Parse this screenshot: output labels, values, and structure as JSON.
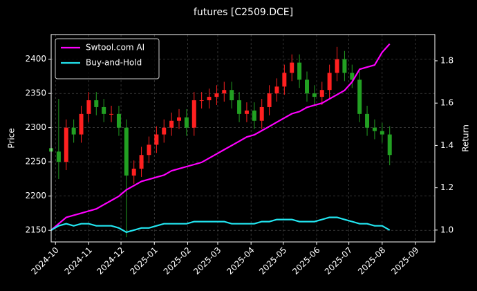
{
  "chart_data": {
    "type": "candlestick",
    "title": "futures [C2509.DCE]",
    "ylabel": "Price",
    "y2label": "Return",
    "x": [
      "2024-09-27",
      "2024-10-04",
      "2024-10-11",
      "2024-10-18",
      "2024-10-25",
      "2024-11-01",
      "2024-11-08",
      "2024-11-15",
      "2024-11-22",
      "2024-11-29",
      "2024-12-06",
      "2024-12-13",
      "2024-12-20",
      "2024-12-27",
      "2025-01-03",
      "2025-01-10",
      "2025-01-17",
      "2025-01-24",
      "2025-01-31",
      "2025-02-07",
      "2025-02-14",
      "2025-02-21",
      "2025-02-28",
      "2025-03-07",
      "2025-03-14",
      "2025-03-21",
      "2025-03-28",
      "2025-04-04",
      "2025-04-11",
      "2025-04-18",
      "2025-04-25",
      "2025-05-02",
      "2025-05-09",
      "2025-05-16",
      "2025-05-23",
      "2025-05-30",
      "2025-06-06",
      "2025-06-13",
      "2025-06-20",
      "2025-06-27",
      "2025-07-04",
      "2025-07-11",
      "2025-07-18",
      "2025-07-25",
      "2025-08-01",
      "2025-08-08"
    ],
    "open": [
      2270,
      2265,
      2250,
      2300,
      2290,
      2320,
      2340,
      2330,
      2320,
      2320,
      2300,
      2230,
      2240,
      2260,
      2275,
      2290,
      2300,
      2310,
      2315,
      2300,
      2340,
      2340,
      2345,
      2350,
      2355,
      2340,
      2320,
      2325,
      2310,
      2330,
      2350,
      2360,
      2380,
      2395,
      2370,
      2350,
      2345,
      2355,
      2380,
      2400,
      2380,
      2370,
      2320,
      2300,
      2295,
      2290
    ],
    "high": [
      2282,
      2342,
      2312,
      2312,
      2332,
      2352,
      2352,
      2342,
      2332,
      2332,
      2312,
      2252,
      2272,
      2287,
      2302,
      2312,
      2322,
      2327,
      2327,
      2352,
      2352,
      2357,
      2362,
      2367,
      2367,
      2352,
      2337,
      2337,
      2342,
      2362,
      2372,
      2392,
      2407,
      2407,
      2382,
      2362,
      2367,
      2392,
      2418,
      2412,
      2392,
      2382,
      2332,
      2312,
      2307,
      2302
    ],
    "low": [
      2253,
      2225,
      2238,
      2278,
      2278,
      2308,
      2318,
      2308,
      2308,
      2288,
      2140,
      2218,
      2228,
      2248,
      2263,
      2278,
      2288,
      2298,
      2288,
      2288,
      2328,
      2328,
      2333,
      2338,
      2328,
      2308,
      2308,
      2298,
      2298,
      2318,
      2338,
      2348,
      2368,
      2358,
      2338,
      2333,
      2333,
      2343,
      2368,
      2368,
      2358,
      2308,
      2288,
      2283,
      2278,
      2245
    ],
    "close": [
      2265,
      2250,
      2300,
      2290,
      2320,
      2340,
      2330,
      2320,
      2320,
      2300,
      2230,
      2240,
      2260,
      2275,
      2290,
      2300,
      2310,
      2315,
      2300,
      2340,
      2340,
      2345,
      2350,
      2355,
      2340,
      2320,
      2325,
      2310,
      2330,
      2350,
      2360,
      2380,
      2395,
      2370,
      2350,
      2345,
      2355,
      2380,
      2400,
      2380,
      2370,
      2320,
      2300,
      2295,
      2290,
      2260
    ],
    "up_color": "#ff2020",
    "down_color": "#22a022",
    "series": [
      {
        "name": "Swtool.com AI",
        "color": "#ff00ff",
        "axis": "y2",
        "values": [
          1.0,
          1.03,
          1.06,
          1.07,
          1.08,
          1.09,
          1.1,
          1.12,
          1.14,
          1.16,
          1.19,
          1.21,
          1.23,
          1.24,
          1.25,
          1.26,
          1.28,
          1.29,
          1.3,
          1.31,
          1.32,
          1.34,
          1.36,
          1.38,
          1.4,
          1.42,
          1.44,
          1.45,
          1.47,
          1.49,
          1.51,
          1.53,
          1.55,
          1.56,
          1.58,
          1.59,
          1.6,
          1.62,
          1.64,
          1.66,
          1.7,
          1.76,
          1.77,
          1.78,
          1.84,
          1.88
        ]
      },
      {
        "name": "Buy-and-Hold",
        "color": "#22e5f0",
        "axis": "y2",
        "values": [
          1.0,
          1.02,
          1.03,
          1.02,
          1.03,
          1.03,
          1.02,
          1.02,
          1.02,
          1.01,
          0.99,
          1.0,
          1.01,
          1.01,
          1.02,
          1.03,
          1.03,
          1.03,
          1.03,
          1.04,
          1.04,
          1.04,
          1.04,
          1.04,
          1.03,
          1.03,
          1.03,
          1.03,
          1.04,
          1.04,
          1.05,
          1.05,
          1.05,
          1.04,
          1.04,
          1.04,
          1.05,
          1.06,
          1.06,
          1.05,
          1.04,
          1.03,
          1.03,
          1.02,
          1.02,
          1.0
        ]
      }
    ],
    "xlim": [
      "2024-09-27",
      "2025-09-19"
    ],
    "xticks": [
      {
        "value": "2024-10-01",
        "label": "2024-10"
      },
      {
        "value": "2024-11-01",
        "label": "2024-11"
      },
      {
        "value": "2024-12-01",
        "label": "2024-12"
      },
      {
        "value": "2025-01-01",
        "label": "2025-01"
      },
      {
        "value": "2025-02-01",
        "label": "2025-02"
      },
      {
        "value": "2025-03-01",
        "label": "2025-03"
      },
      {
        "value": "2025-04-01",
        "label": "2025-04"
      },
      {
        "value": "2025-05-01",
        "label": "2025-05"
      },
      {
        "value": "2025-06-01",
        "label": "2025-06"
      },
      {
        "value": "2025-07-01",
        "label": "2025-07"
      },
      {
        "value": "2025-08-01",
        "label": "2025-08"
      },
      {
        "value": "2025-09-01",
        "label": "2025-09"
      }
    ],
    "ylim": [
      2133,
      2436
    ],
    "yticks": [
      2150,
      2200,
      2250,
      2300,
      2350,
      2400
    ],
    "y2lim": [
      0.944,
      1.924
    ],
    "y2ticks": [
      {
        "value": 1,
        "label": "1.0"
      },
      1.2,
      1.4,
      1.6,
      1.8
    ],
    "grid": true,
    "legend": "upper left"
  }
}
